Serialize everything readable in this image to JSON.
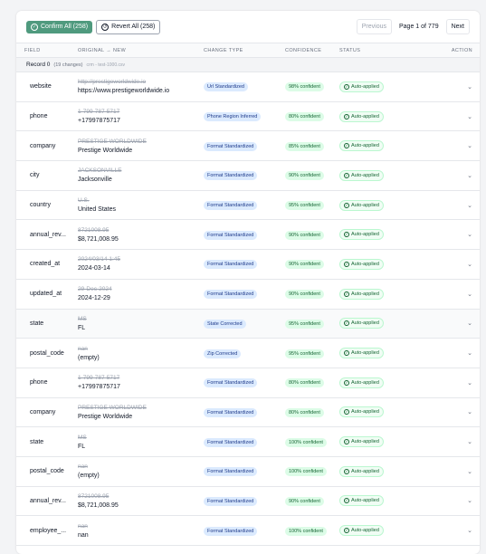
{
  "toolbar": {
    "confirm": "Confirm All (258)",
    "revert": "Revert All (258)",
    "previous": "Previous",
    "page": "Page 1 of 779",
    "next": "Next"
  },
  "table": {
    "headers": [
      "FIELD",
      "ORIGINAL → NEW",
      "CHANGE TYPE",
      "CONFIDENCE",
      "STATUS",
      "ACTION"
    ],
    "record": {
      "title": "Record 0",
      "changes": "(19 changes)",
      "file": "crm - test-1000.csv"
    },
    "rows": [
      [
        "website",
        "http://prestigeworldwide.io",
        "https://www.prestigeworldwide.io",
        "Url Standardized",
        "98% confident",
        "Auto-applied"
      ],
      [
        "phone",
        "1-799-787-5717",
        "+17997875717",
        "Phone Region Inferred",
        "80% confident",
        "Auto-applied"
      ],
      [
        "company",
        "PRESTIGE WORLDWIDE",
        "Prestige Worldwide",
        "Format Standardized",
        "85% confident",
        "Auto-applied"
      ],
      [
        "city",
        "JACKSONVILLE",
        "Jacksonville",
        "Format Standardized",
        "90% confident",
        "Auto-applied"
      ],
      [
        "country",
        "U.S.",
        "United States",
        "Format Standardized",
        "95% confident",
        "Auto-applied"
      ],
      [
        "annual_rev...",
        "8721008.95",
        "$8,721,008.95",
        "Format Standardized",
        "90% confident",
        "Auto-applied"
      ],
      [
        "created_at",
        "2024/03/14 1:45",
        "2024-03-14",
        "Format Standardized",
        "90% confident",
        "Auto-applied"
      ],
      [
        "updated_at",
        "29-Dec-2024",
        "2024-12-29",
        "Format Standardized",
        "90% confident",
        "Auto-applied"
      ],
      [
        "state",
        "MS",
        "FL",
        "State Corrected",
        "95% confident",
        "Auto-applied"
      ],
      [
        "postal_code",
        "nan",
        "(empty)",
        "Zip Corrected",
        "95% confident",
        "Auto-applied"
      ],
      [
        "phone",
        "1-799-787-5717",
        "+17997875717",
        "Format Standardized",
        "80% confident",
        "Auto-applied"
      ],
      [
        "company",
        "PRESTIGE WORLDWIDE",
        "Prestige Worldwide",
        "Format Standardized",
        "80% confident",
        "Auto-applied"
      ],
      [
        "state",
        "MS",
        "FL",
        "Format Standardized",
        "100% confident",
        "Auto-applied"
      ],
      [
        "postal_code",
        "nan",
        "(empty)",
        "Format Standardized",
        "100% confident",
        "Auto-applied"
      ],
      [
        "annual_rev...",
        "8721008.95",
        "$8,721,008.95",
        "Format Standardized",
        "90% confident",
        "Auto-applied"
      ],
      [
        "employee_...",
        "nan",
        "nan",
        "Format Standardized",
        "100% confident",
        "Auto-applied"
      ]
    ]
  }
}
